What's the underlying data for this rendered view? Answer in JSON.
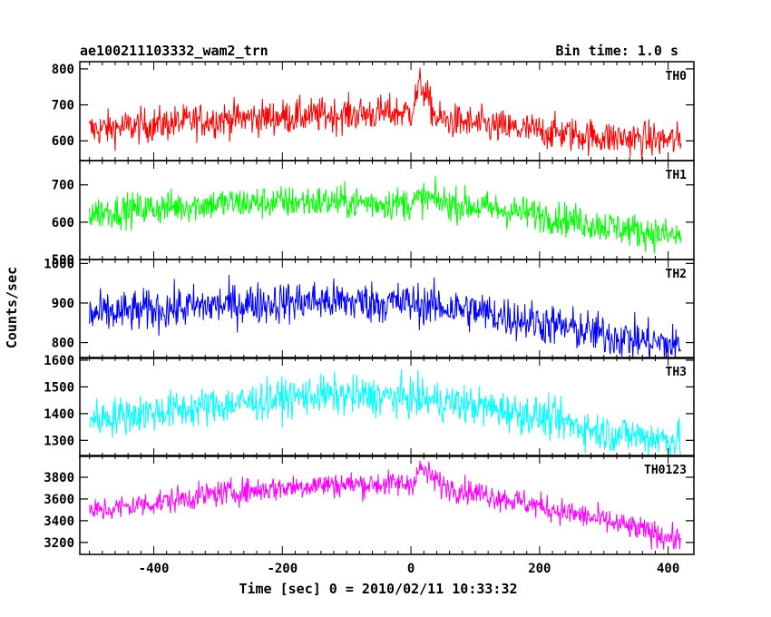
{
  "header": {
    "title": "ae100211103332_wam2_trn",
    "bin_time": "Bin time: 1.0 s"
  },
  "axis": {
    "xlabel": "Time [sec] 0 = 2010/02/11 10:33:32",
    "ylabel": "Counts/sec"
  },
  "chart_data": {
    "type": "line",
    "title": "ae100211103332_wam2_trn",
    "xlabel": "Time [sec] 0 = 2010/02/11 10:33:32",
    "ylabel": "Counts/sec",
    "xlim": [
      -515,
      440
    ],
    "x_start": -500,
    "x_end": 420,
    "x_ticks": [
      -400,
      -200,
      0,
      200,
      400
    ],
    "grid": false,
    "panels": [
      {
        "name": "TH0",
        "color": "#ff0000",
        "ylim": [
          545,
          820
        ],
        "y_ticks": [
          600,
          700,
          800
        ],
        "noise": 35,
        "trend": [
          [
            -500,
            630
          ],
          [
            -300,
            660
          ],
          [
            -150,
            670
          ],
          [
            0,
            680
          ],
          [
            15,
            760
          ],
          [
            40,
            660
          ],
          [
            150,
            635
          ],
          [
            300,
            610
          ],
          [
            420,
            600
          ]
        ]
      },
      {
        "name": "TH1",
        "color": "#00ff00",
        "ylim": [
          500,
          765
        ],
        "y_ticks": [
          500,
          600,
          700
        ],
        "noise": 32,
        "trend": [
          [
            -500,
            625
          ],
          [
            -300,
            650
          ],
          [
            -150,
            655
          ],
          [
            0,
            650
          ],
          [
            20,
            665
          ],
          [
            60,
            650
          ],
          [
            200,
            620
          ],
          [
            300,
            590
          ],
          [
            420,
            560
          ]
        ]
      },
      {
        "name": "TH2",
        "color": "#0000ff",
        "ylim": [
          760,
          1010
        ],
        "y_ticks": [
          800,
          900,
          1000
        ],
        "noise": 38,
        "trend": [
          [
            -500,
            870
          ],
          [
            -300,
            895
          ],
          [
            -150,
            905
          ],
          [
            0,
            900
          ],
          [
            100,
            880
          ],
          [
            200,
            850
          ],
          [
            300,
            820
          ],
          [
            420,
            790
          ]
        ]
      },
      {
        "name": "TH3",
        "color": "#00ffff",
        "ylim": [
          1240,
          1610
        ],
        "y_ticks": [
          1300,
          1400,
          1500,
          1600
        ],
        "noise": 52,
        "trend": [
          [
            -500,
            1380
          ],
          [
            -300,
            1430
          ],
          [
            -150,
            1470
          ],
          [
            0,
            1460
          ],
          [
            100,
            1430
          ],
          [
            200,
            1390
          ],
          [
            300,
            1330
          ],
          [
            420,
            1300
          ]
        ]
      },
      {
        "name": "TH0123",
        "color": "#ff00ff",
        "ylim": [
          3090,
          4000
        ],
        "y_ticks": [
          3200,
          3400,
          3600,
          3800
        ],
        "noise": 85,
        "trend": [
          [
            -500,
            3480
          ],
          [
            -300,
            3650
          ],
          [
            -150,
            3730
          ],
          [
            0,
            3740
          ],
          [
            15,
            3880
          ],
          [
            50,
            3720
          ],
          [
            150,
            3600
          ],
          [
            300,
            3400
          ],
          [
            420,
            3220
          ]
        ]
      }
    ]
  }
}
